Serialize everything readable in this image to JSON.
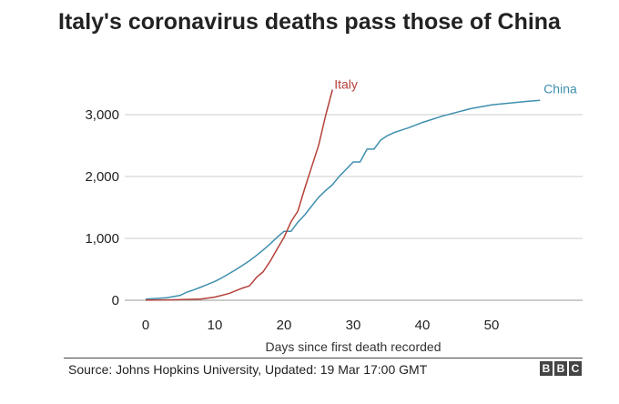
{
  "chart_data": {
    "type": "line",
    "title": "Italy's coronavirus deaths pass those of China",
    "xlabel": "Days since first death recorded",
    "ylabel": "",
    "xlim": [
      -3,
      62
    ],
    "ylim": [
      0,
      3400
    ],
    "x_ticks": [
      0,
      10,
      20,
      30,
      40,
      50
    ],
    "x_tick_labels": [
      "0",
      "10",
      "20",
      "30",
      "40",
      "50"
    ],
    "y_ticks": [
      0,
      1000,
      2000,
      3000
    ],
    "y_tick_labels": [
      "0",
      "1,000",
      "2,000",
      "3,000"
    ],
    "grid": true,
    "series": [
      {
        "name": "Italy",
        "color": "#b5413a",
        "x": [
          0,
          4,
          8,
          10,
          12,
          14,
          15,
          16,
          17,
          18,
          19,
          20,
          21,
          22,
          23,
          24,
          25,
          26,
          27
        ],
        "y": [
          1,
          7,
          21,
          52,
          107,
          197,
          233,
          366,
          463,
          631,
          827,
          1016,
          1266,
          1441,
          1809,
          2158,
          2503,
          2978,
          3405
        ]
      },
      {
        "name": "China",
        "color": "#3f8fae",
        "x": [
          0,
          3,
          5,
          6,
          7,
          8,
          9,
          10,
          11,
          12,
          13,
          14,
          15,
          16,
          17,
          18,
          19,
          20,
          21,
          22,
          23,
          24,
          25,
          26,
          27,
          28,
          29,
          30,
          31,
          32,
          33,
          34,
          35,
          36,
          38,
          40,
          43,
          47,
          50,
          55,
          57
        ],
        "y": [
          17,
          41,
          80,
          132,
          170,
          213,
          259,
          304,
          362,
          426,
          492,
          565,
          638,
          724,
          813,
          910,
          1018,
          1115,
          1113,
          1262,
          1381,
          1524,
          1665,
          1770,
          1868,
          2004,
          2118,
          2236,
          2236,
          2442,
          2442,
          2592,
          2663,
          2715,
          2788,
          2873,
          2981,
          3097,
          3158,
          3213,
          3231
        ]
      }
    ],
    "annotations": [
      {
        "text": "Italy",
        "series": "Italy"
      },
      {
        "text": "China",
        "series": "China"
      }
    ]
  },
  "footer": {
    "source": "Source: Johns Hopkins University, Updated: 19 Mar 17:00 GMT",
    "logo_letters": [
      "B",
      "B",
      "C"
    ]
  }
}
